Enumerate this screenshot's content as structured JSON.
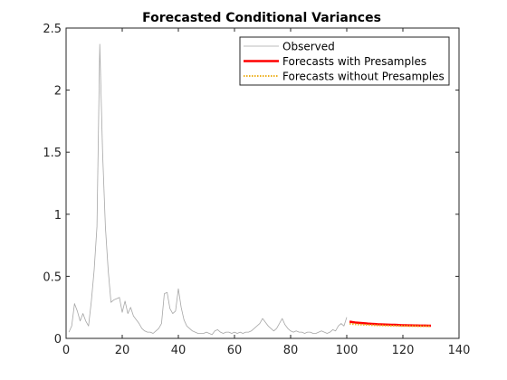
{
  "chart_data": {
    "type": "line",
    "title": "Forecasted Conditional Variances",
    "xlabel": "",
    "ylabel": "",
    "xlim": [
      0,
      140
    ],
    "ylim": [
      0,
      2.5
    ],
    "xticks": [
      0,
      20,
      40,
      60,
      80,
      100,
      120,
      140
    ],
    "yticks": [
      0,
      0.5,
      1,
      1.5,
      2,
      2.5
    ],
    "xtick_labels": [
      "0",
      "20",
      "40",
      "60",
      "80",
      "100",
      "120",
      "140"
    ],
    "ytick_labels": [
      "0",
      "0.5",
      "1",
      "1.5",
      "2",
      "2.5"
    ],
    "grid": false,
    "legend_position": "top-right",
    "series": [
      {
        "name": "Observed",
        "color": "#a6a6a6",
        "style": "solid",
        "x": [
          1,
          2,
          3,
          4,
          5,
          6,
          7,
          8,
          9,
          10,
          11,
          12,
          13,
          14,
          15,
          16,
          17,
          18,
          19,
          20,
          21,
          22,
          23,
          24,
          25,
          26,
          27,
          28,
          29,
          30,
          31,
          32,
          33,
          34,
          35,
          36,
          37,
          38,
          39,
          40,
          41,
          42,
          43,
          44,
          45,
          46,
          47,
          48,
          49,
          50,
          51,
          52,
          53,
          54,
          55,
          56,
          57,
          58,
          59,
          60,
          61,
          62,
          63,
          64,
          65,
          66,
          67,
          68,
          69,
          70,
          71,
          72,
          73,
          74,
          75,
          76,
          77,
          78,
          79,
          80,
          81,
          82,
          83,
          84,
          85,
          86,
          87,
          88,
          89,
          90,
          91,
          92,
          93,
          94,
          95,
          96,
          97,
          98,
          99,
          100
        ],
        "y": [
          0.05,
          0.1,
          0.28,
          0.22,
          0.14,
          0.2,
          0.14,
          0.1,
          0.3,
          0.55,
          0.9,
          2.37,
          1.5,
          0.9,
          0.55,
          0.29,
          0.31,
          0.32,
          0.33,
          0.21,
          0.3,
          0.2,
          0.25,
          0.18,
          0.15,
          0.12,
          0.08,
          0.06,
          0.05,
          0.05,
          0.04,
          0.06,
          0.08,
          0.12,
          0.36,
          0.37,
          0.24,
          0.2,
          0.22,
          0.4,
          0.25,
          0.15,
          0.1,
          0.08,
          0.06,
          0.05,
          0.04,
          0.04,
          0.04,
          0.05,
          0.04,
          0.03,
          0.06,
          0.07,
          0.05,
          0.04,
          0.05,
          0.05,
          0.04,
          0.05,
          0.04,
          0.05,
          0.04,
          0.05,
          0.05,
          0.06,
          0.08,
          0.1,
          0.12,
          0.16,
          0.13,
          0.1,
          0.08,
          0.06,
          0.08,
          0.12,
          0.16,
          0.11,
          0.08,
          0.06,
          0.05,
          0.06,
          0.05,
          0.05,
          0.04,
          0.05,
          0.05,
          0.04,
          0.04,
          0.05,
          0.06,
          0.05,
          0.04,
          0.05,
          0.07,
          0.06,
          0.1,
          0.12,
          0.1,
          0.17
        ]
      },
      {
        "name": "Forecasts with Presamples",
        "color": "#ff0000",
        "style": "solid",
        "x": [
          101,
          102,
          103,
          104,
          105,
          106,
          107,
          108,
          109,
          110,
          111,
          112,
          113,
          114,
          115,
          116,
          117,
          118,
          119,
          120,
          121,
          122,
          123,
          124,
          125,
          126,
          127,
          128,
          129,
          130
        ],
        "y": [
          0.135,
          0.131,
          0.128,
          0.126,
          0.124,
          0.122,
          0.12,
          0.118,
          0.117,
          0.116,
          0.114,
          0.113,
          0.112,
          0.111,
          0.11,
          0.109,
          0.109,
          0.108,
          0.107,
          0.106,
          0.106,
          0.105,
          0.105,
          0.104,
          0.104,
          0.103,
          0.103,
          0.103,
          0.102,
          0.102
        ]
      },
      {
        "name": "Forecasts without Presamples",
        "color": "#edb120",
        "style": "dotted",
        "x": [
          101,
          102,
          103,
          104,
          105,
          106,
          107,
          108,
          109,
          110,
          111,
          112,
          113,
          114,
          115,
          116,
          117,
          118,
          119,
          120,
          121,
          122,
          123,
          124,
          125,
          126,
          127,
          128,
          129,
          130
        ],
        "y": [
          0.118,
          0.116,
          0.114,
          0.112,
          0.111,
          0.11,
          0.109,
          0.108,
          0.107,
          0.106,
          0.105,
          0.105,
          0.104,
          0.103,
          0.103,
          0.102,
          0.102,
          0.101,
          0.101,
          0.1,
          0.1,
          0.1,
          0.099,
          0.099,
          0.099,
          0.098,
          0.098,
          0.098,
          0.098,
          0.097
        ]
      }
    ]
  }
}
